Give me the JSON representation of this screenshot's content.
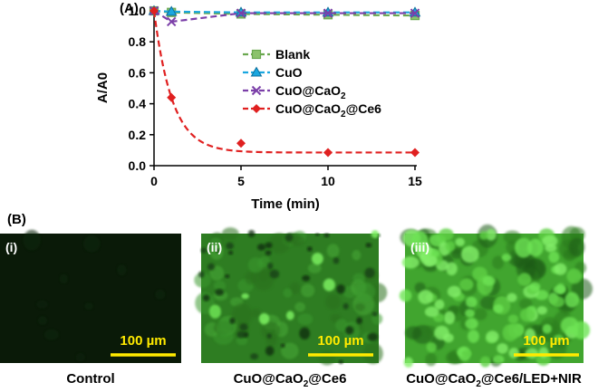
{
  "figure": {
    "panel_a_label": "(A)",
    "panel_b_label": "(B)"
  },
  "chart_data": {
    "type": "line",
    "xlabel": "Time (min)",
    "ylabel": "A/A0",
    "xlim": [
      0,
      15
    ],
    "ylim": [
      0,
      1.0
    ],
    "x_ticks": [
      0,
      5,
      10,
      15
    ],
    "y_ticks": [
      0.0,
      0.2,
      0.4,
      0.6,
      0.8,
      1.0
    ],
    "x_tick_labels": [
      "0",
      "5",
      "10",
      "15"
    ],
    "y_tick_labels": [
      "0.0",
      "0.2",
      "0.4",
      "0.6",
      "0.8",
      "1.0"
    ],
    "grid": false,
    "legend_position": "right",
    "series": [
      {
        "name": "Blank",
        "x": [
          0,
          1,
          5,
          10,
          15
        ],
        "y": [
          1.0,
          0.99,
          0.98,
          0.975,
          0.97
        ],
        "color": "#6aa84f",
        "marker": "square",
        "dash": "dashed"
      },
      {
        "name": "CuO",
        "x": [
          0,
          1,
          5,
          10,
          15
        ],
        "y": [
          1.0,
          0.995,
          0.99,
          0.99,
          0.99
        ],
        "color": "#1aa7e0",
        "marker": "triangle",
        "dash": "dashed"
      },
      {
        "name": "CuO@CaO2",
        "x": [
          0,
          1,
          5,
          10,
          15
        ],
        "y": [
          1.0,
          0.93,
          0.985,
          0.985,
          0.985
        ],
        "color": "#7b3fa8",
        "marker": "x",
        "dash": "dashed"
      },
      {
        "name": "CuO@CaO2@Ce6",
        "x": [
          0,
          1,
          5,
          10,
          15
        ],
        "y": [
          1.0,
          0.44,
          0.145,
          0.085,
          0.085
        ],
        "color": "#e02020",
        "marker": "diamond",
        "dash": "dashed",
        "fit": "exponential"
      }
    ]
  },
  "images": [
    {
      "panel": "(i)",
      "caption": "Control",
      "scale_label": "100 µm",
      "brightness": "dark"
    },
    {
      "panel": "(ii)",
      "caption": "CuO@CaO2@Ce6",
      "scale_label": "100 µm",
      "brightness": "medium"
    },
    {
      "panel": "(iii)",
      "caption": "CuO@CaO2@Ce6/LED+NIR",
      "scale_label": "100 µm",
      "brightness": "bright"
    }
  ],
  "colors": {
    "micrograph_dark": "#0a1a08",
    "micrograph_medium": "#2e7d22",
    "micrograph_bright": "#41a52f",
    "cell_glow": "#6ee455",
    "scale_bar": "#ffea00",
    "panel_label": "#ffffff"
  }
}
